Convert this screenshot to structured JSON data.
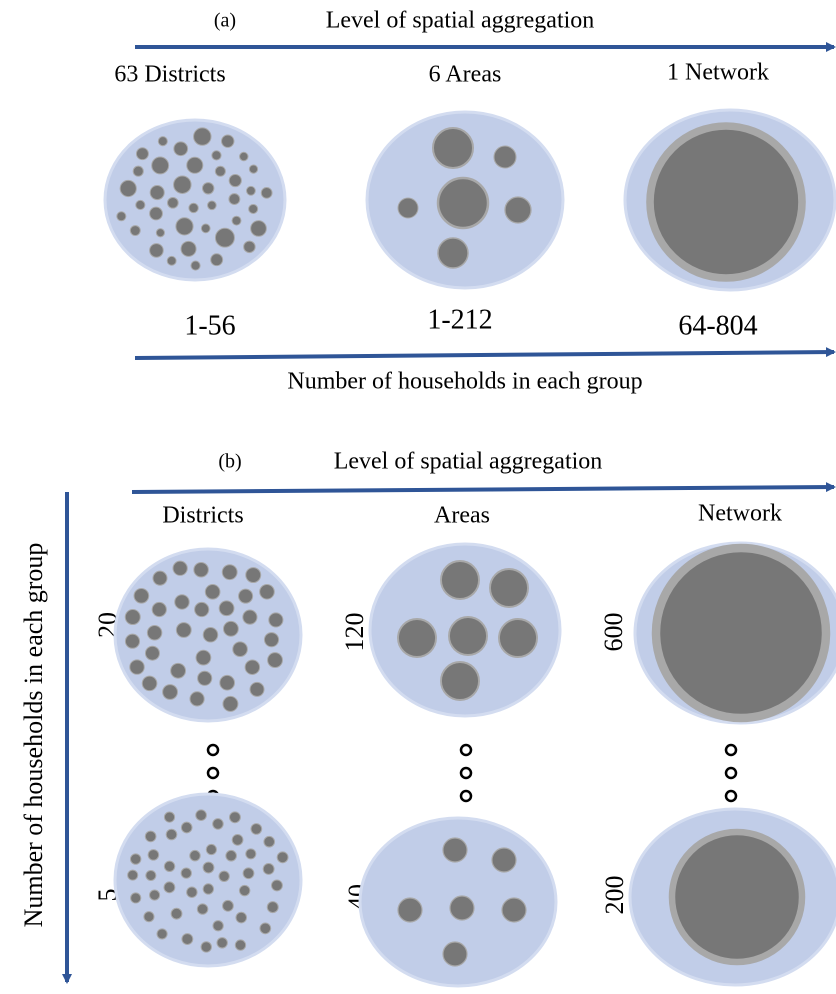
{
  "panel_a": {
    "label": "(a)",
    "top_axis": "Level of spatial aggregation",
    "columns": [
      {
        "title": "63 Districts",
        "range": "1-56"
      },
      {
        "title": "6 Areas",
        "range": "1-212"
      },
      {
        "title": "1 Network",
        "range": "64-804"
      }
    ],
    "bottom_axis": "Number of households in each group"
  },
  "panel_b": {
    "label": "(b)",
    "top_axis": "Level of spatial aggregation",
    "columns": [
      "Districts",
      "Areas",
      "Network"
    ],
    "side_axis": "Number of households in each group",
    "rows": [
      [
        20,
        120,
        600
      ],
      [
        5,
        40,
        200
      ]
    ]
  }
}
